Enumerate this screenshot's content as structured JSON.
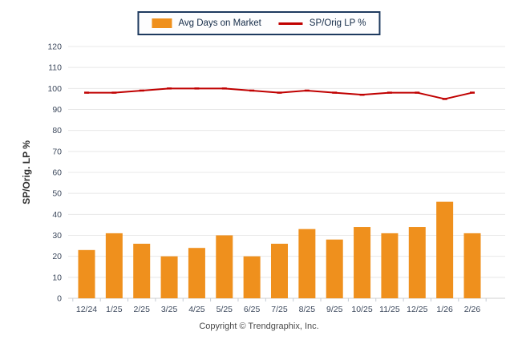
{
  "legend": {
    "items": [
      {
        "label": "Avg Days on Market",
        "type": "bar"
      },
      {
        "label": "SP/Orig LP %",
        "type": "line"
      }
    ]
  },
  "chart_data": {
    "type": "bar",
    "categories": [
      "12/24",
      "1/25",
      "2/25",
      "3/25",
      "4/25",
      "5/25",
      "6/25",
      "7/25",
      "8/25",
      "9/25",
      "10/25",
      "11/25",
      "12/25",
      "1/26",
      "2/26"
    ],
    "series": [
      {
        "name": "Avg Days on Market",
        "type": "bar",
        "values": [
          23,
          31,
          26,
          20,
          24,
          30,
          20,
          26,
          33,
          28,
          34,
          31,
          34,
          46,
          31
        ]
      },
      {
        "name": "SP/Orig LP %",
        "type": "line",
        "values": [
          98,
          98,
          99,
          100,
          100,
          100,
          99,
          98,
          99,
          98,
          97,
          98,
          98,
          95,
          98
        ]
      }
    ],
    "title": "",
    "xlabel": "",
    "ylabel": "SP/Orig. LP %",
    "ylim": [
      0,
      120
    ],
    "ytick_step": 10,
    "grid": true,
    "legend_position": "top-center"
  },
  "footer": {
    "copyright": "Copyright © Trendgraphix, Inc."
  },
  "colors": {
    "bar": "#EF901D",
    "line": "#C00000",
    "grid": "#E8E8E8",
    "baseline": "#D2D2D2",
    "tick": "#C4CAD4",
    "axis_text": "#3C485C",
    "ylabel_text": "#2F2F2F",
    "legend_border": "#1E3A5F",
    "copyright_text": "#4A4A4A"
  }
}
